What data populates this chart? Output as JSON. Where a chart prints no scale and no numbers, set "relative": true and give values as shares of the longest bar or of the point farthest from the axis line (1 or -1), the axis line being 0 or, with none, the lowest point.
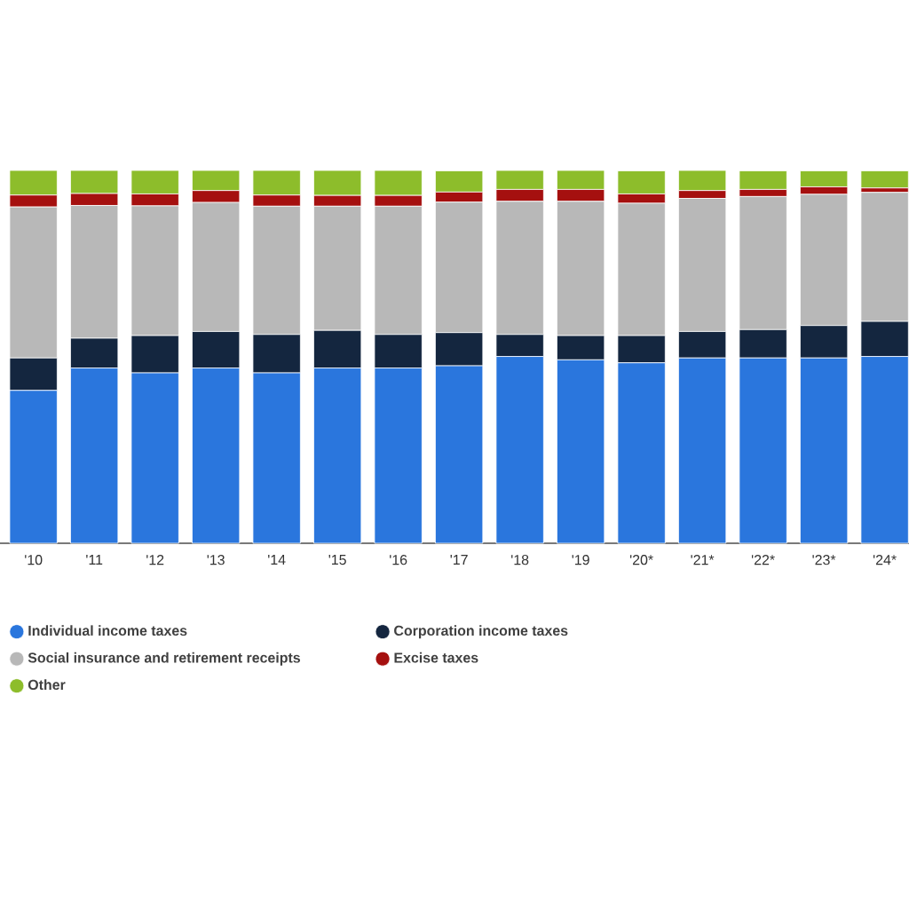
{
  "chart_data": {
    "type": "bar",
    "stacked": true,
    "relative": true,
    "legend": "bottom",
    "marker": "circle",
    "categories": [
      "'10",
      "'11",
      "'12",
      "'13",
      "'14",
      "'15",
      "'16",
      "'17",
      "'18",
      "'19",
      "'20*",
      "'21*",
      "'22*",
      "'23*",
      "'24*"
    ],
    "series": [
      {
        "name": "Individual income taxes",
        "color": "#2a76dd",
        "values": [
          0.41,
          0.47,
          0.457,
          0.47,
          0.457,
          0.47,
          0.47,
          0.476,
          0.501,
          0.492,
          0.484,
          0.497,
          0.497,
          0.497,
          0.501
        ]
      },
      {
        "name": "Corporation income taxes",
        "color": "#14263f",
        "values": [
          0.087,
          0.08,
          0.1,
          0.098,
          0.103,
          0.101,
          0.09,
          0.089,
          0.059,
          0.065,
          0.073,
          0.071,
          0.076,
          0.087,
          0.094
        ]
      },
      {
        "name": "Social insurance and retirement receipts",
        "color": "#b8b8b8",
        "values": [
          0.405,
          0.356,
          0.348,
          0.346,
          0.344,
          0.333,
          0.344,
          0.35,
          0.357,
          0.36,
          0.355,
          0.357,
          0.357,
          0.352,
          0.346
        ]
      },
      {
        "name": "Excise taxes",
        "color": "#a5100f",
        "values": [
          0.032,
          0.032,
          0.032,
          0.032,
          0.03,
          0.029,
          0.029,
          0.027,
          0.032,
          0.032,
          0.025,
          0.021,
          0.019,
          0.02,
          0.012
        ]
      },
      {
        "name": "Other",
        "color": "#8dbd2b",
        "values": [
          0.066,
          0.062,
          0.063,
          0.054,
          0.066,
          0.067,
          0.067,
          0.057,
          0.051,
          0.051,
          0.062,
          0.054,
          0.05,
          0.043,
          0.046
        ]
      }
    ]
  }
}
